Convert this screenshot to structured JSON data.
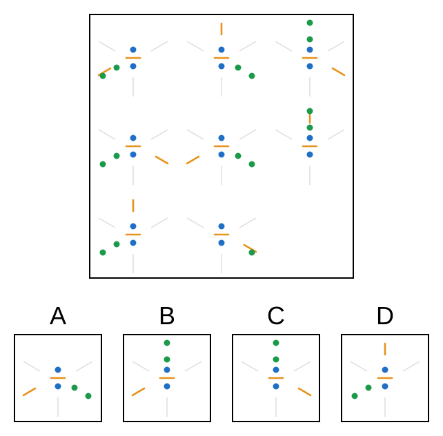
{
  "colors": {
    "spoke": "#dddddd",
    "dash": "#e8921a",
    "blue_dot": "#1f6fc7",
    "green_dot": "#1b9a4a",
    "frame": "#000000"
  },
  "puzzle": {
    "cells": [
      {
        "id": "r1c1",
        "empty": false,
        "features": [
          "blue-dots",
          "mid-dash",
          "green-lower-left-2",
          "orange-lower-left"
        ]
      },
      {
        "id": "r1c2",
        "empty": false,
        "features": [
          "blue-dots",
          "mid-dash",
          "orange-top",
          "green-lower-right-2"
        ]
      },
      {
        "id": "r1c3",
        "empty": false,
        "features": [
          "blue-dots",
          "mid-dash",
          "green-top-2",
          "orange-lower-right"
        ]
      },
      {
        "id": "r2c1",
        "empty": false,
        "features": [
          "blue-dots",
          "mid-dash",
          "green-lower-left-2",
          "orange-lower-right"
        ]
      },
      {
        "id": "r2c2",
        "empty": false,
        "features": [
          "blue-dots",
          "mid-dash",
          "orange-lower-left",
          "green-lower-right-2"
        ]
      },
      {
        "id": "r2c3",
        "empty": false,
        "features": [
          "blue-dots",
          "mid-dash",
          "green-top-2",
          "orange-top"
        ]
      },
      {
        "id": "r3c1",
        "empty": false,
        "features": [
          "blue-dots",
          "mid-dash",
          "orange-top",
          "green-lower-left-2"
        ]
      },
      {
        "id": "r3c2",
        "empty": false,
        "features": [
          "blue-dots",
          "mid-dash",
          "green-lower-right-1",
          "orange-lower-right"
        ]
      },
      {
        "id": "r3c3",
        "empty": true,
        "features": []
      }
    ]
  },
  "options": [
    {
      "label": "A",
      "features": [
        "blue-dots",
        "mid-dash",
        "orange-lower-left",
        "green-lower-right-2"
      ]
    },
    {
      "label": "B",
      "features": [
        "blue-dots",
        "mid-dash",
        "green-top-2",
        "orange-lower-left"
      ]
    },
    {
      "label": "C",
      "features": [
        "blue-dots",
        "mid-dash",
        "green-top-2",
        "orange-lower-right"
      ]
    },
    {
      "label": "D",
      "features": [
        "blue-dots",
        "mid-dash",
        "orange-top",
        "green-lower-left-2"
      ]
    }
  ]
}
